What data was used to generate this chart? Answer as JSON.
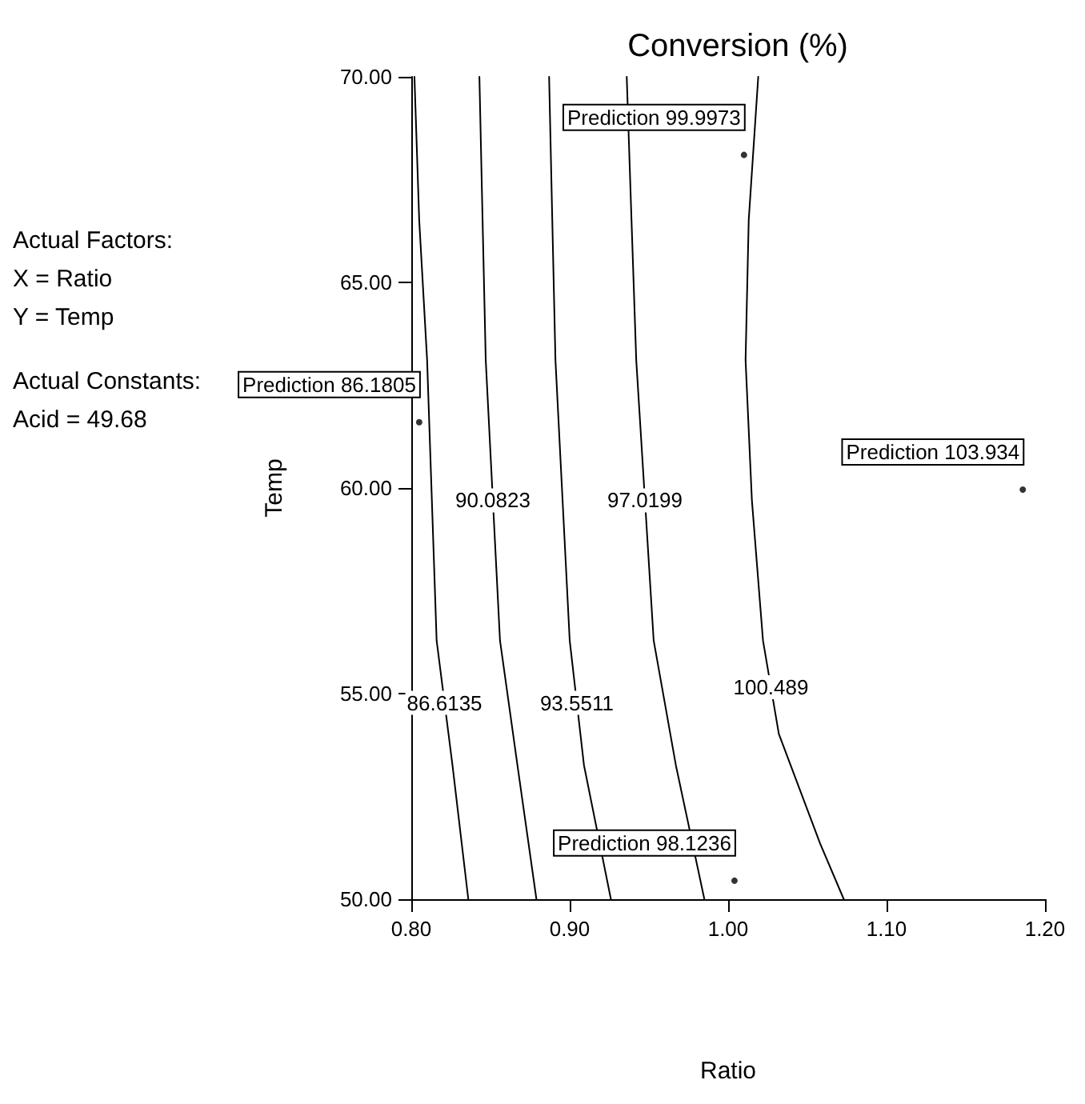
{
  "chart_data": {
    "type": "line",
    "title": "Conversion (%)",
    "xlabel": "Ratio",
    "ylabel": "Temp",
    "xlim": [
      0.8,
      1.2
    ],
    "ylim": [
      50,
      70
    ],
    "xticks": [
      {
        "value": 0.8,
        "label": "0.80"
      },
      {
        "value": 0.9,
        "label": "0.90"
      },
      {
        "value": 1.0,
        "label": "1.00"
      },
      {
        "value": 1.1,
        "label": "1.10"
      },
      {
        "value": 1.2,
        "label": "1.20"
      }
    ],
    "yticks": [
      {
        "value": 50,
        "label": "50.00"
      },
      {
        "value": 55,
        "label": "55.00"
      },
      {
        "value": 60,
        "label": "60.00"
      },
      {
        "value": 65,
        "label": "65.00"
      },
      {
        "value": 70,
        "label": "70.00"
      }
    ],
    "grid": false,
    "legend": false,
    "marker": "none",
    "line_style": "solid",
    "series": [
      {
        "name": "86.6135",
        "color": "#000000",
        "x": [
          0.802,
          0.805,
          0.81,
          0.816,
          0.826,
          0.836
        ],
        "values": [
          70,
          66.52,
          63.11,
          56.29,
          53.26,
          50
        ]
      },
      {
        "name": "90.0823",
        "color": "#000000",
        "x": [
          0.843,
          0.845,
          0.847,
          0.856,
          0.867,
          0.879
        ],
        "values": [
          70,
          66.52,
          63.11,
          56.29,
          53.26,
          50
        ]
      },
      {
        "name": "93.5511",
        "color": "#000000",
        "x": [
          0.887,
          0.889,
          0.891,
          0.9,
          0.909,
          0.926
        ],
        "values": [
          70,
          66.52,
          63.11,
          56.29,
          53.26,
          50
        ]
      },
      {
        "name": "97.0199",
        "color": "#000000",
        "x": [
          0.936,
          0.939,
          0.942,
          0.953,
          0.967,
          0.985
        ],
        "values": [
          70,
          66.52,
          63.11,
          56.29,
          53.26,
          50
        ]
      },
      {
        "name": "100.489",
        "color": "#000000",
        "x": [
          1.019,
          1.013,
          1.011,
          1.015,
          1.022,
          1.032,
          1.058,
          1.073
        ],
        "values": [
          70,
          66.52,
          63.11,
          59.7,
          56.29,
          54.02,
          51.36,
          50
        ]
      }
    ],
    "annotations": [
      {
        "text": "Prediction 99.9973",
        "x": 1.01,
        "y": 68.1
      },
      {
        "text": "Prediction 86.1805",
        "x": 0.805,
        "y": 61.6
      },
      {
        "text": "Prediction 103.934",
        "x": 1.186,
        "y": 59.96
      },
      {
        "text": "Prediction 98.1236",
        "x": 1.004,
        "y": 50.45
      },
      "Actual Factors:",
      "X = Ratio",
      "Y = Temp",
      "Actual Constants:",
      "Acid = 49.68"
    ]
  }
}
